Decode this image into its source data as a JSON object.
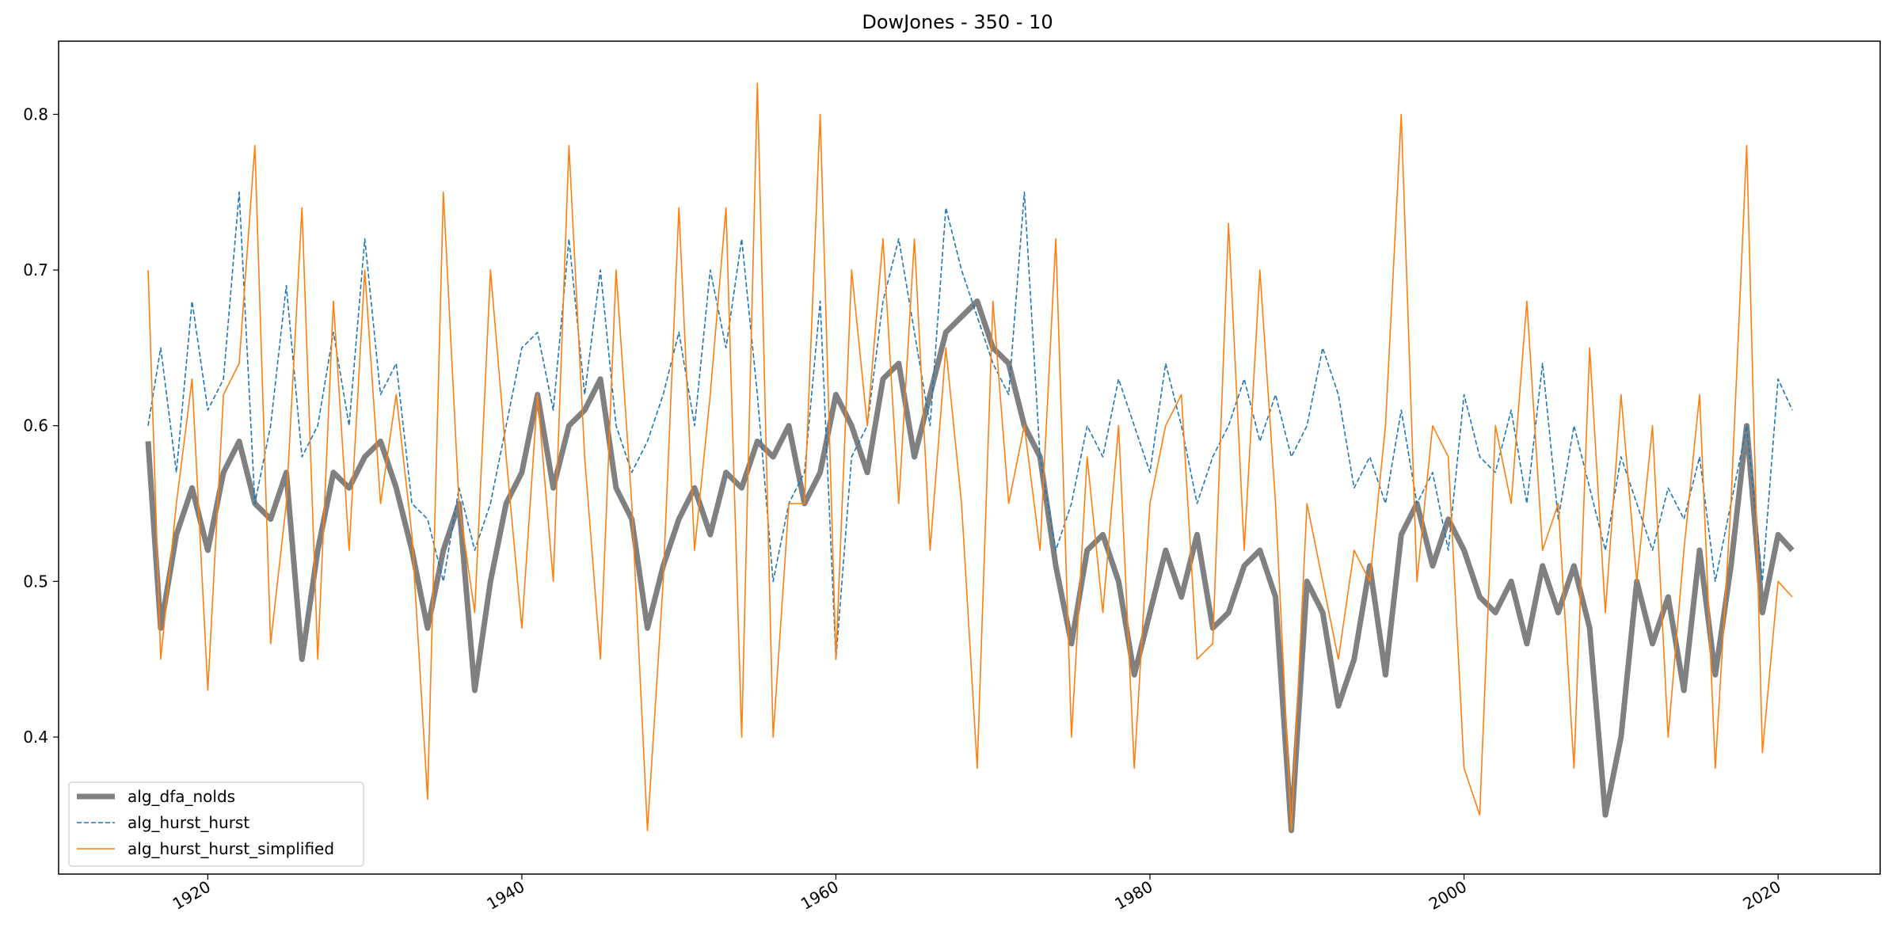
{
  "chart_data": {
    "type": "line",
    "title": "DowJones - 350 - 10",
    "xlabel": "",
    "ylabel": "",
    "xlim": [
      1910.5,
      2026.5
    ],
    "ylim": [
      0.312,
      0.847
    ],
    "grid": false,
    "legend_position": "lower-left",
    "x_ticks": [
      1920,
      1940,
      1960,
      1980,
      2000,
      2020
    ],
    "x_tick_labels": [
      "1920",
      "1940",
      "1960",
      "1980",
      "2000",
      "2020"
    ],
    "y_ticks": [
      0.4,
      0.5,
      0.6,
      0.7,
      0.8
    ],
    "y_tick_labels": [
      "0.4",
      "0.5",
      "0.6",
      "0.7",
      "0.8"
    ],
    "series": [
      {
        "name": "alg_dfa_nolds",
        "color": "#808080",
        "style": "solid-thick",
        "x": [
          1916.2,
          1917,
          1918,
          1919,
          1920,
          1921,
          1922,
          1923,
          1924,
          1925,
          1926,
          1927,
          1928,
          1929,
          1930,
          1931,
          1932,
          1933,
          1934,
          1935,
          1936,
          1937,
          1938,
          1939,
          1940,
          1941,
          1942,
          1943,
          1944,
          1945,
          1946,
          1947,
          1948,
          1949,
          1950,
          1951,
          1952,
          1953,
          1954,
          1955,
          1956,
          1957,
          1958,
          1959,
          1960,
          1961,
          1962,
          1963,
          1964,
          1965,
          1966,
          1967,
          1968,
          1969,
          1970,
          1971,
          1972,
          1973,
          1974,
          1975,
          1976,
          1977,
          1978,
          1979,
          1980,
          1981,
          1982,
          1983,
          1984,
          1985,
          1986,
          1987,
          1988,
          1989,
          1990,
          1991,
          1992,
          1993,
          1994,
          1995,
          1996,
          1997,
          1998,
          1999,
          2000,
          2001,
          2002,
          2003,
          2004,
          2005,
          2006,
          2007,
          2008,
          2009,
          2010,
          2011,
          2012,
          2013,
          2014,
          2015,
          2016,
          2017,
          2018,
          2019,
          2020,
          2020.9
        ],
        "y": [
          0.59,
          0.47,
          0.53,
          0.56,
          0.52,
          0.57,
          0.59,
          0.55,
          0.54,
          0.57,
          0.45,
          0.52,
          0.57,
          0.56,
          0.58,
          0.59,
          0.56,
          0.52,
          0.47,
          0.52,
          0.55,
          0.43,
          0.5,
          0.55,
          0.57,
          0.62,
          0.56,
          0.6,
          0.61,
          0.63,
          0.56,
          0.54,
          0.47,
          0.51,
          0.54,
          0.56,
          0.53,
          0.57,
          0.56,
          0.59,
          0.58,
          0.6,
          0.55,
          0.57,
          0.62,
          0.6,
          0.57,
          0.63,
          0.64,
          0.58,
          0.62,
          0.66,
          0.67,
          0.68,
          0.65,
          0.64,
          0.6,
          0.58,
          0.51,
          0.46,
          0.52,
          0.53,
          0.5,
          0.44,
          0.48,
          0.52,
          0.49,
          0.53,
          0.47,
          0.48,
          0.51,
          0.52,
          0.49,
          0.34,
          0.5,
          0.48,
          0.42,
          0.45,
          0.51,
          0.44,
          0.53,
          0.55,
          0.51,
          0.54,
          0.52,
          0.49,
          0.48,
          0.5,
          0.46,
          0.51,
          0.48,
          0.51,
          0.47,
          0.35,
          0.4,
          0.5,
          0.46,
          0.49,
          0.43,
          0.52,
          0.44,
          0.51,
          0.6,
          0.48,
          0.53,
          0.52
        ]
      },
      {
        "name": "alg_hurst_hurst",
        "color": "#1f77b4",
        "style": "dashed",
        "x": [
          1916.2,
          1917,
          1918,
          1919,
          1920,
          1921,
          1922,
          1923,
          1924,
          1925,
          1926,
          1927,
          1928,
          1929,
          1930,
          1931,
          1932,
          1933,
          1934,
          1935,
          1936,
          1937,
          1938,
          1939,
          1940,
          1941,
          1942,
          1943,
          1944,
          1945,
          1946,
          1947,
          1948,
          1949,
          1950,
          1951,
          1952,
          1953,
          1954,
          1955,
          1956,
          1957,
          1958,
          1959,
          1960,
          1961,
          1962,
          1963,
          1964,
          1965,
          1966,
          1967,
          1968,
          1969,
          1970,
          1971,
          1972,
          1973,
          1974,
          1975,
          1976,
          1977,
          1978,
          1979,
          1980,
          1981,
          1982,
          1983,
          1984,
          1985,
          1986,
          1987,
          1988,
          1989,
          1990,
          1991,
          1992,
          1993,
          1994,
          1995,
          1996,
          1997,
          1998,
          1999,
          2000,
          2001,
          2002,
          2003,
          2004,
          2005,
          2006,
          2007,
          2008,
          2009,
          2010,
          2011,
          2012,
          2013,
          2014,
          2015,
          2016,
          2017,
          2018,
          2019,
          2020,
          2020.9
        ],
        "y": [
          0.6,
          0.65,
          0.57,
          0.68,
          0.61,
          0.63,
          0.75,
          0.55,
          0.6,
          0.69,
          0.58,
          0.6,
          0.66,
          0.6,
          0.72,
          0.62,
          0.64,
          0.55,
          0.54,
          0.5,
          0.56,
          0.52,
          0.55,
          0.6,
          0.65,
          0.66,
          0.61,
          0.72,
          0.62,
          0.7,
          0.6,
          0.57,
          0.59,
          0.62,
          0.66,
          0.6,
          0.7,
          0.65,
          0.72,
          0.62,
          0.5,
          0.55,
          0.57,
          0.68,
          0.45,
          0.58,
          0.6,
          0.68,
          0.72,
          0.66,
          0.6,
          0.74,
          0.7,
          0.67,
          0.64,
          0.62,
          0.75,
          0.58,
          0.52,
          0.55,
          0.6,
          0.58,
          0.63,
          0.6,
          0.57,
          0.64,
          0.6,
          0.55,
          0.58,
          0.6,
          0.63,
          0.59,
          0.62,
          0.58,
          0.6,
          0.65,
          0.62,
          0.56,
          0.58,
          0.55,
          0.61,
          0.55,
          0.57,
          0.52,
          0.62,
          0.58,
          0.57,
          0.61,
          0.55,
          0.64,
          0.54,
          0.6,
          0.56,
          0.52,
          0.58,
          0.55,
          0.52,
          0.56,
          0.54,
          0.58,
          0.5,
          0.55,
          0.6,
          0.5,
          0.63,
          0.61
        ]
      },
      {
        "name": "alg_hurst_hurst_simplified",
        "color": "#ff7f0e",
        "style": "solid-thin",
        "x": [
          1916.2,
          1917,
          1918,
          1919,
          1920,
          1921,
          1922,
          1923,
          1924,
          1925,
          1926,
          1927,
          1928,
          1929,
          1930,
          1931,
          1932,
          1933,
          1934,
          1935,
          1936,
          1937,
          1938,
          1939,
          1940,
          1941,
          1942,
          1943,
          1944,
          1945,
          1946,
          1947,
          1948,
          1949,
          1950,
          1951,
          1952,
          1953,
          1954,
          1955,
          1956,
          1957,
          1958,
          1959,
          1960,
          1961,
          1962,
          1963,
          1964,
          1965,
          1966,
          1967,
          1968,
          1969,
          1970,
          1971,
          1972,
          1973,
          1974,
          1975,
          1976,
          1977,
          1978,
          1979,
          1980,
          1981,
          1982,
          1983,
          1984,
          1985,
          1986,
          1987,
          1988,
          1989,
          1990,
          1991,
          1992,
          1993,
          1994,
          1995,
          1996,
          1997,
          1998,
          1999,
          2000,
          2001,
          2002,
          2003,
          2004,
          2005,
          2006,
          2007,
          2008,
          2009,
          2010,
          2011,
          2012,
          2013,
          2014,
          2015,
          2016,
          2017,
          2018,
          2019,
          2020,
          2020.9
        ],
        "y": [
          0.7,
          0.45,
          0.55,
          0.63,
          0.43,
          0.62,
          0.64,
          0.78,
          0.46,
          0.55,
          0.74,
          0.45,
          0.68,
          0.52,
          0.7,
          0.55,
          0.62,
          0.53,
          0.36,
          0.75,
          0.55,
          0.48,
          0.7,
          0.58,
          0.47,
          0.62,
          0.5,
          0.78,
          0.58,
          0.45,
          0.7,
          0.55,
          0.34,
          0.5,
          0.74,
          0.52,
          0.62,
          0.74,
          0.4,
          0.82,
          0.4,
          0.55,
          0.55,
          0.8,
          0.45,
          0.7,
          0.6,
          0.72,
          0.55,
          0.72,
          0.52,
          0.65,
          0.55,
          0.38,
          0.68,
          0.55,
          0.6,
          0.52,
          0.72,
          0.4,
          0.58,
          0.48,
          0.6,
          0.38,
          0.55,
          0.6,
          0.62,
          0.45,
          0.46,
          0.73,
          0.52,
          0.7,
          0.55,
          0.34,
          0.55,
          0.5,
          0.45,
          0.52,
          0.5,
          0.6,
          0.8,
          0.5,
          0.6,
          0.58,
          0.38,
          0.35,
          0.6,
          0.55,
          0.68,
          0.52,
          0.55,
          0.38,
          0.65,
          0.48,
          0.62,
          0.5,
          0.6,
          0.4,
          0.52,
          0.62,
          0.38,
          0.55,
          0.78,
          0.39,
          0.5,
          0.49
        ]
      }
    ]
  }
}
